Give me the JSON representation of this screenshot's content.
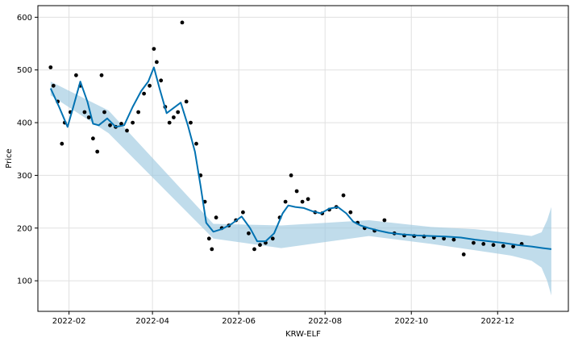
{
  "chart_data": {
    "type": "line",
    "title": "",
    "xlabel": "KRW-ELF",
    "ylabel": "Price",
    "grid": true,
    "xlim": [
      "2022-01-10",
      "2023-01-20"
    ],
    "ylim": [
      42,
      622
    ],
    "x_ticks": [
      {
        "date": "2022-02-01",
        "label": "2022-02"
      },
      {
        "date": "2022-04-01",
        "label": "2022-04"
      },
      {
        "date": "2022-06-01",
        "label": "2022-06"
      },
      {
        "date": "2022-08-01",
        "label": "2022-08"
      },
      {
        "date": "2022-10-01",
        "label": "2022-10"
      },
      {
        "date": "2022-12-01",
        "label": "2022-12"
      }
    ],
    "y_ticks": [
      100,
      200,
      300,
      400,
      500,
      600
    ],
    "colors": {
      "forecast": "#0072B2",
      "uncertainty": "#9ecae1",
      "actual": "#000000",
      "grid": "#e0e0e0"
    },
    "series": [
      {
        "role": "forecast",
        "x": [
          "2022-01-19",
          "2022-01-25",
          "2022-01-31",
          "2022-02-04",
          "2022-02-09",
          "2022-02-14",
          "2022-02-18",
          "2022-02-22",
          "2022-02-28",
          "2022-03-06",
          "2022-03-12",
          "2022-03-18",
          "2022-03-24",
          "2022-03-29",
          "2022-04-02",
          "2022-04-06",
          "2022-04-11",
          "2022-04-16",
          "2022-04-21",
          "2022-04-26",
          "2022-05-01",
          "2022-05-05",
          "2022-05-09",
          "2022-05-14",
          "2022-05-20",
          "2022-05-27",
          "2022-06-03",
          "2022-06-09",
          "2022-06-14",
          "2022-06-20",
          "2022-06-26",
          "2022-07-02",
          "2022-07-06",
          "2022-07-11",
          "2022-07-17",
          "2022-07-23",
          "2022-07-29",
          "2022-08-04",
          "2022-08-10",
          "2022-08-16",
          "2022-08-21",
          "2022-08-26",
          "2022-09-01",
          "2022-09-08",
          "2022-09-15",
          "2022-09-25",
          "2022-10-05",
          "2022-10-15",
          "2022-10-25",
          "2022-11-05",
          "2022-11-15",
          "2022-11-25",
          "2022-12-05",
          "2022-12-15",
          "2022-12-25",
          "2023-01-02",
          "2023-01-08"
        ],
        "y": [
          465,
          430,
          392,
          430,
          478,
          440,
          398,
          395,
          408,
          392,
          395,
          430,
          460,
          478,
          505,
          465,
          418,
          428,
          438,
          395,
          345,
          280,
          210,
          193,
          198,
          208,
          222,
          200,
          175,
          175,
          190,
          228,
          243,
          240,
          238,
          232,
          228,
          237,
          240,
          228,
          212,
          205,
          200,
          195,
          191,
          188,
          186,
          185,
          184,
          182,
          178,
          175,
          172,
          168,
          165,
          162,
          160
        ]
      },
      {
        "role": "uncertainty",
        "x": [
          "2022-01-19",
          "2022-03-01",
          "2022-05-14",
          "2022-07-01",
          "2022-09-01",
          "2022-10-15",
          "2022-11-15",
          "2022-12-10",
          "2022-12-25",
          "2023-01-01",
          "2023-01-05",
          "2023-01-08"
        ],
        "upper": [
          478,
          423,
          208,
          205,
          215,
          202,
          198,
          190,
          185,
          192,
          215,
          240
        ],
        "lower": [
          452,
          380,
          180,
          162,
          185,
          170,
          158,
          148,
          138,
          125,
          100,
          72
        ]
      },
      {
        "role": "actual",
        "x": [
          "2022-01-19",
          "2022-01-21",
          "2022-01-24",
          "2022-01-27",
          "2022-01-29",
          "2022-02-02",
          "2022-02-06",
          "2022-02-09",
          "2022-02-12",
          "2022-02-15",
          "2022-02-18",
          "2022-02-21",
          "2022-02-24",
          "2022-02-26",
          "2022-03-02",
          "2022-03-06",
          "2022-03-10",
          "2022-03-14",
          "2022-03-18",
          "2022-03-22",
          "2022-03-26",
          "2022-03-30",
          "2022-04-02",
          "2022-04-04",
          "2022-04-07",
          "2022-04-10",
          "2022-04-13",
          "2022-04-16",
          "2022-04-19",
          "2022-04-22",
          "2022-04-25",
          "2022-04-28",
          "2022-05-02",
          "2022-05-05",
          "2022-05-08",
          "2022-05-11",
          "2022-05-13",
          "2022-05-16",
          "2022-05-20",
          "2022-05-25",
          "2022-05-30",
          "2022-06-04",
          "2022-06-08",
          "2022-06-12",
          "2022-06-16",
          "2022-06-20",
          "2022-06-25",
          "2022-06-30",
          "2022-07-04",
          "2022-07-08",
          "2022-07-12",
          "2022-07-16",
          "2022-07-20",
          "2022-07-25",
          "2022-07-30",
          "2022-08-04",
          "2022-08-09",
          "2022-08-14",
          "2022-08-19",
          "2022-08-24",
          "2022-08-29",
          "2022-09-05",
          "2022-09-12",
          "2022-09-19",
          "2022-09-26",
          "2022-10-03",
          "2022-10-10",
          "2022-10-17",
          "2022-10-24",
          "2022-10-31",
          "2022-11-07",
          "2022-11-14",
          "2022-11-21",
          "2022-11-28",
          "2022-12-05",
          "2022-12-12",
          "2022-12-18"
        ],
        "y": [
          505,
          470,
          440,
          360,
          400,
          420,
          490,
          470,
          420,
          410,
          370,
          345,
          490,
          420,
          395,
          392,
          398,
          385,
          400,
          420,
          455,
          470,
          540,
          515,
          480,
          430,
          400,
          410,
          420,
          590,
          440,
          400,
          360,
          300,
          250,
          180,
          160,
          220,
          200,
          205,
          215,
          230,
          190,
          160,
          168,
          172,
          180,
          220,
          250,
          300,
          270,
          250,
          255,
          230,
          228,
          235,
          240,
          262,
          230,
          210,
          200,
          195,
          215,
          190,
          186,
          185,
          184,
          182,
          180,
          178,
          150,
          172,
          170,
          168,
          166,
          165,
          170
        ]
      }
    ]
  }
}
